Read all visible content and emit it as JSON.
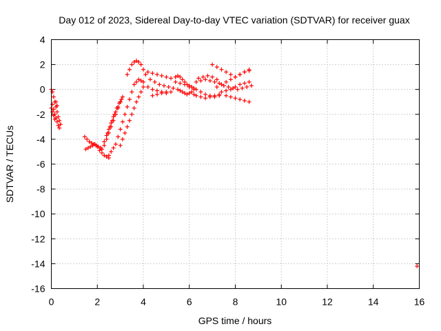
{
  "chart_data": {
    "type": "scatter",
    "title": "Day 012 of 2023, Sidereal Day-to-day VTEC variation (SDTVAR) for receiver guax",
    "xlabel": "GPS time / hours",
    "ylabel": "SDTVAR / TECUs",
    "xlim": [
      0,
      16
    ],
    "ylim": [
      -16,
      4
    ],
    "xticks": [
      0,
      2,
      4,
      6,
      8,
      10,
      12,
      14,
      16
    ],
    "yticks": [
      4,
      2,
      0,
      -2,
      -4,
      -6,
      -8,
      -10,
      -12,
      -14,
      -16
    ],
    "xtick_labels": [
      "0",
      "2",
      "4",
      "6",
      "8",
      "10",
      "12",
      "14",
      "16"
    ],
    "ytick_labels": [
      "4",
      "2",
      "0",
      "-2",
      "-4",
      "-6",
      "-8",
      "-10",
      "-12",
      "-14",
      "-16"
    ],
    "grid": true,
    "marker": "plus",
    "color": "#ff0000",
    "series": [
      {
        "x": [
          0.0,
          0.05,
          0.1,
          0.15,
          0.2,
          0.25,
          0.3,
          0.35,
          0.4,
          0.05,
          0.1,
          0.15,
          0.2,
          0.25,
          0.3,
          0.35,
          0.0,
          0.05,
          0.1,
          0.15,
          0.2,
          0.25,
          1.45,
          1.55,
          1.65,
          1.75,
          1.85,
          1.95,
          2.05,
          2.15,
          1.5,
          1.6,
          1.7,
          1.8,
          1.9,
          2.0,
          2.1,
          2.2,
          2.3,
          2.4,
          2.5,
          2.2,
          2.3,
          2.4,
          2.5,
          2.6,
          2.7,
          2.8,
          2.9,
          3.0,
          2.3,
          2.4,
          2.5,
          2.6,
          2.7,
          2.8,
          2.9,
          3.0,
          3.1,
          2.45,
          2.55,
          2.65,
          2.75,
          2.85,
          2.95,
          3.05,
          2.5,
          2.6,
          2.7,
          2.8,
          2.9,
          3.0,
          3.1,
          3.2,
          3.3,
          3.4,
          3.5,
          3.6,
          3.7,
          3.8,
          3.9,
          4.0,
          3.0,
          3.1,
          3.2,
          3.3,
          3.4,
          3.5,
          3.6,
          3.7,
          3.8,
          3.9,
          4.0,
          3.3,
          3.4,
          3.5,
          3.6,
          3.7,
          3.8,
          3.9,
          4.0,
          4.1,
          4.2,
          4.4,
          4.6,
          4.8,
          5.0,
          5.2,
          4.3,
          4.5,
          4.7,
          4.9,
          5.1,
          5.3,
          4.2,
          4.4,
          4.6,
          4.8,
          5.0,
          5.2,
          4.4,
          4.6,
          4.8,
          5.0,
          5.4,
          5.5,
          5.6,
          5.7,
          5.8,
          5.9,
          6.0,
          6.1,
          6.2,
          5.5,
          5.6,
          5.7,
          5.8,
          5.9,
          6.0,
          6.1,
          6.2,
          6.3,
          5.4,
          5.6,
          5.8,
          6.0,
          6.2,
          6.3,
          6.5,
          6.7,
          6.9,
          7.1,
          7.3,
          6.3,
          6.5,
          6.7,
          6.9,
          7.1,
          7.3,
          6.4,
          6.6,
          6.8,
          7.0,
          7.2,
          6.5,
          6.7,
          6.9,
          7.1,
          7.3,
          7.0,
          7.2,
          7.4,
          7.6,
          7.8,
          8.0,
          8.2,
          8.4,
          8.6,
          7.2,
          7.4,
          7.6,
          7.8,
          8.0,
          8.2,
          8.4,
          8.6,
          7.4,
          7.6,
          7.8,
          8.0,
          8.2,
          8.4,
          8.6,
          7.5,
          7.7,
          7.9,
          8.1,
          8.3,
          8.5,
          8.7,
          7.6,
          7.8,
          8.0,
          8.2,
          8.4,
          8.6,
          15.9
        ],
        "y": [
          0.0,
          -0.2,
          -0.6,
          -1.0,
          -1.4,
          -1.8,
          -2.2,
          -2.5,
          -2.8,
          -1.2,
          -1.6,
          -2.0,
          -2.3,
          -2.6,
          -2.9,
          -3.1,
          -1.5,
          -1.8,
          -2.1,
          -2.4,
          -1.0,
          -1.3,
          -3.8,
          -4.0,
          -4.2,
          -4.3,
          -4.4,
          -4.5,
          -4.6,
          -4.7,
          -4.8,
          -4.7,
          -4.6,
          -4.5,
          -4.4,
          -4.6,
          -4.9,
          -5.1,
          -5.3,
          -5.4,
          -5.5,
          -4.8,
          -4.5,
          -4.0,
          -3.5,
          -3.0,
          -2.5,
          -2.0,
          -1.5,
          -1.0,
          -4.2,
          -3.7,
          -3.2,
          -2.7,
          -2.2,
          -1.8,
          -1.4,
          -1.0,
          -0.6,
          -3.5,
          -3.0,
          -2.5,
          -2.0,
          -1.5,
          -1.1,
          -0.8,
          -5.3,
          -5.0,
          -4.7,
          -4.4,
          -3.8,
          -3.2,
          -2.6,
          -2.0,
          -1.4,
          -0.8,
          -0.2,
          0.4,
          0.6,
          0.8,
          0.7,
          0.6,
          -4.5,
          -4.0,
          -3.5,
          -3.0,
          -2.5,
          -2.0,
          -1.5,
          -1.0,
          -0.6,
          -0.2,
          0.2,
          1.2,
          1.6,
          2.0,
          2.2,
          2.3,
          2.2,
          2.0,
          1.6,
          1.2,
          1.4,
          1.3,
          1.2,
          1.1,
          1.0,
          0.9,
          0.8,
          0.6,
          0.4,
          0.3,
          0.2,
          0.1,
          0.2,
          0.0,
          -0.1,
          -0.2,
          -0.3,
          -0.2,
          -0.5,
          -0.4,
          -0.3,
          -0.2,
          1.0,
          1.1,
          1.0,
          0.8,
          0.6,
          0.4,
          0.3,
          0.2,
          0.1,
          0.0,
          -0.1,
          -0.2,
          -0.3,
          -0.4,
          -0.3,
          -0.2,
          -0.4,
          -0.5,
          0.6,
          0.5,
          0.4,
          0.2,
          0.0,
          0.6,
          0.7,
          0.8,
          0.7,
          0.6,
          0.5,
          0.0,
          -0.2,
          -0.4,
          -0.5,
          -0.6,
          -0.5,
          0.9,
          1.0,
          1.1,
          1.0,
          0.8,
          -0.6,
          -0.7,
          -0.6,
          -0.5,
          -0.4,
          2.0,
          1.8,
          1.6,
          1.4,
          1.2,
          1.0,
          1.2,
          1.4,
          1.6,
          0.2,
          0.4,
          0.6,
          0.8,
          1.0,
          1.2,
          1.4,
          1.5,
          -0.2,
          -0.1,
          0.0,
          0.2,
          0.4,
          0.5,
          0.6,
          0.3,
          0.2,
          0.1,
          0.0,
          0.1,
          0.2,
          0.3,
          -0.5,
          -0.6,
          -0.7,
          -0.8,
          -0.9,
          -1.0,
          -14.2
        ]
      }
    ]
  }
}
